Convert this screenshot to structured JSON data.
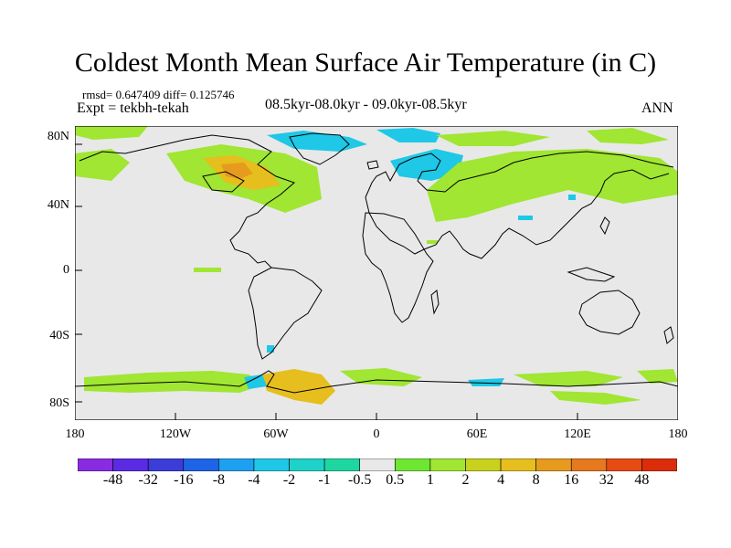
{
  "title": "Coldest Month Mean Surface Air Temperature (in C)",
  "stats": {
    "text": "rmsd= 0.647409 diff= 0.125746"
  },
  "experiment": {
    "text": "Expt = tekbh-tekah"
  },
  "period": {
    "text": "08.5kyr-08.0kyr - 09.0kyr-08.5kyr"
  },
  "season": {
    "text": "ANN"
  },
  "lat_labels": [
    "80N",
    "40N",
    "0",
    "40S",
    "80S"
  ],
  "lon_labels": [
    "180",
    "120W",
    "60W",
    "0",
    "60E",
    "120E",
    "180"
  ],
  "colorbar": {
    "colors": [
      "#8a2be2",
      "#5a2be2",
      "#3c3cd8",
      "#1e64e6",
      "#1ea0f0",
      "#1ec8e6",
      "#1ed2c8",
      "#1ed7a0",
      "#e8e8e8",
      "#6ee632",
      "#a0e632",
      "#c8d21e",
      "#e6be1e",
      "#e69b1e",
      "#e6781e",
      "#e64b14",
      "#dc2d0a"
    ],
    "labels": [
      "-48",
      "-32",
      "-16",
      "-8",
      "-4",
      "-2",
      "-1",
      "-0.5",
      "0.5",
      "1",
      "2",
      "4",
      "8",
      "16",
      "32",
      "48"
    ]
  },
  "colors": {
    "background": "#e8e8e8",
    "coastline": "#000000"
  }
}
